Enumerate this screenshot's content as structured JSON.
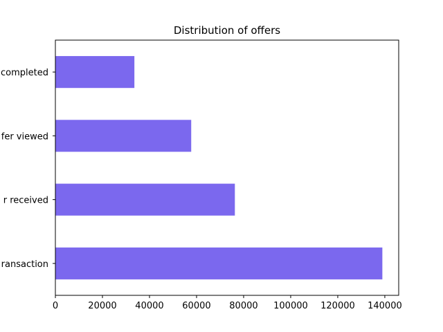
{
  "chart_data": {
    "type": "bar",
    "orientation": "horizontal",
    "title": "Distribution of offers",
    "xlabel": "",
    "ylabel": "",
    "categories": [
      "transaction",
      "offer received",
      "offer viewed",
      "offer completed"
    ],
    "visible_category_labels": [
      "ransaction",
      "r received",
      "fer viewed",
      "completed"
    ],
    "values": [
      138953,
      76277,
      57725,
      33579
    ],
    "xlim": [
      0,
      145900
    ],
    "xticks": [
      0,
      20000,
      40000,
      60000,
      80000,
      100000,
      120000,
      140000
    ],
    "bar_color": "#7b68ee",
    "grid": false,
    "legend": "none"
  }
}
